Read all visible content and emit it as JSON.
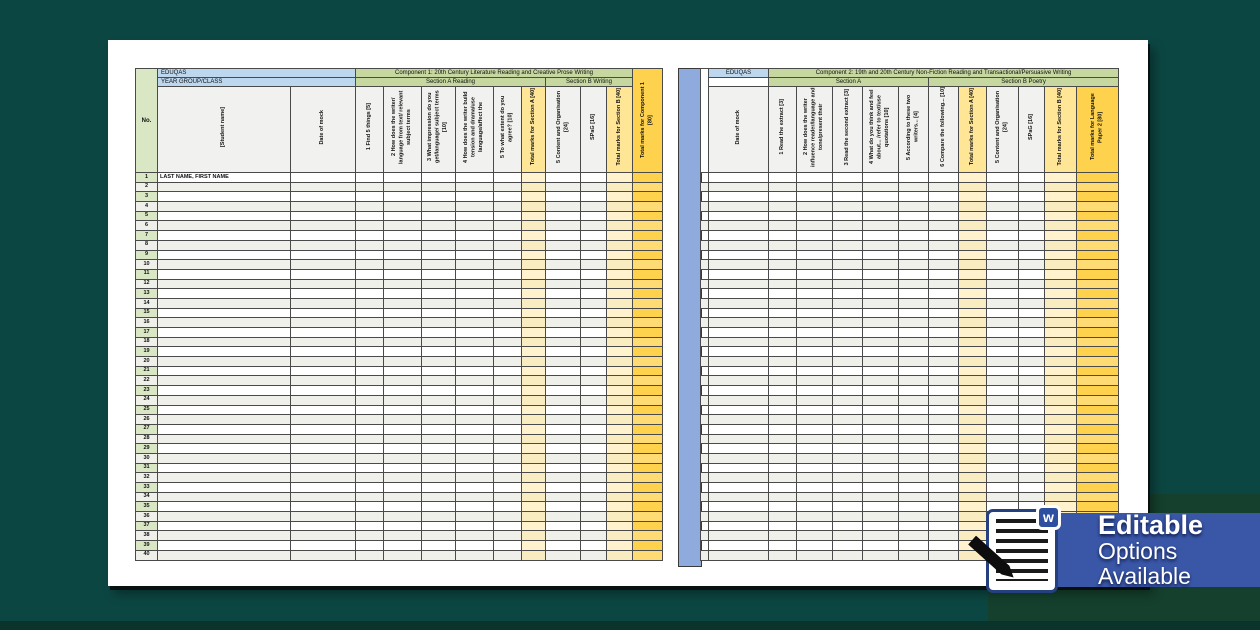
{
  "colors": {
    "page_background": "#0C4642",
    "brand_blue": "#BDD7EE",
    "band_green": "#C6D8A0",
    "number_green": "#D9E7C5",
    "total_yellow_header": "#FFE596",
    "total_yellow_body": "#FFF2CC",
    "gold": "#FFD24D",
    "separator_blue": "#8FAADC",
    "banner_blue": "#3A57A7"
  },
  "left_table": {
    "brand": "EDUQAS",
    "year_group_label": "YEAR GROUP/CLASS",
    "component_title": "Component 1: 20th Century Literature Reading and Creative Prose Writing",
    "section_a_label": "Section A Reading",
    "section_b_label": "Section B Writing",
    "no_label": "No.",
    "student_label": "[Student name]",
    "date_label": "Date of mock",
    "questions": [
      "1 Find 5 things  [5]",
      "2 How does the writer/ language from text/ relevant subject terms",
      "3 What impression do you get/language/ subject terms [10]",
      "4 How does the writer build tension and drama/use language/affect the",
      "5 To what extent do you agree? [10]"
    ],
    "total_a_label": "Total marks for Section A  [40]",
    "content_label": "5 Content and Organisation [24]",
    "spag_label": "SPaG [16]",
    "total_b_label": "Total marks for Section B [40]",
    "total_component_label": "Total marks for Component 1  [80]",
    "first_student": "LAST NAME, FIRST NAME",
    "row_count": 40
  },
  "right_table": {
    "brand": "EDUQAS",
    "component_title": "Component 2: 19th and 20th Century Non-Fiction Reading and Transactional/Persuasive Writing",
    "section_a_label": "Section A",
    "section_b_label": "Section B Poetry",
    "date_label": "Date of mock",
    "questions": [
      "1 Read the extract [3]",
      "2 How does the writer influence reader/language and tone/present their",
      "3 Read the second extract [3]",
      "4 What do you think and feel about... /refer to text/use quotations [10]",
      "5 According to these two writers...  [4]",
      "6 Compare the following...  [10]"
    ],
    "total_a_label": "Total marks for Section A [40]",
    "content_label": "5 Content and Organisation [24]",
    "spag_label": "SPaG [16]",
    "total_b_label": "Total marks for Section B [40]",
    "total_component_label": "Total marks for Language Paper 2  [80]",
    "row_count": 40
  },
  "badge": {
    "heading": "Editable",
    "subheading": "Options Available",
    "word_mark": "w"
  }
}
